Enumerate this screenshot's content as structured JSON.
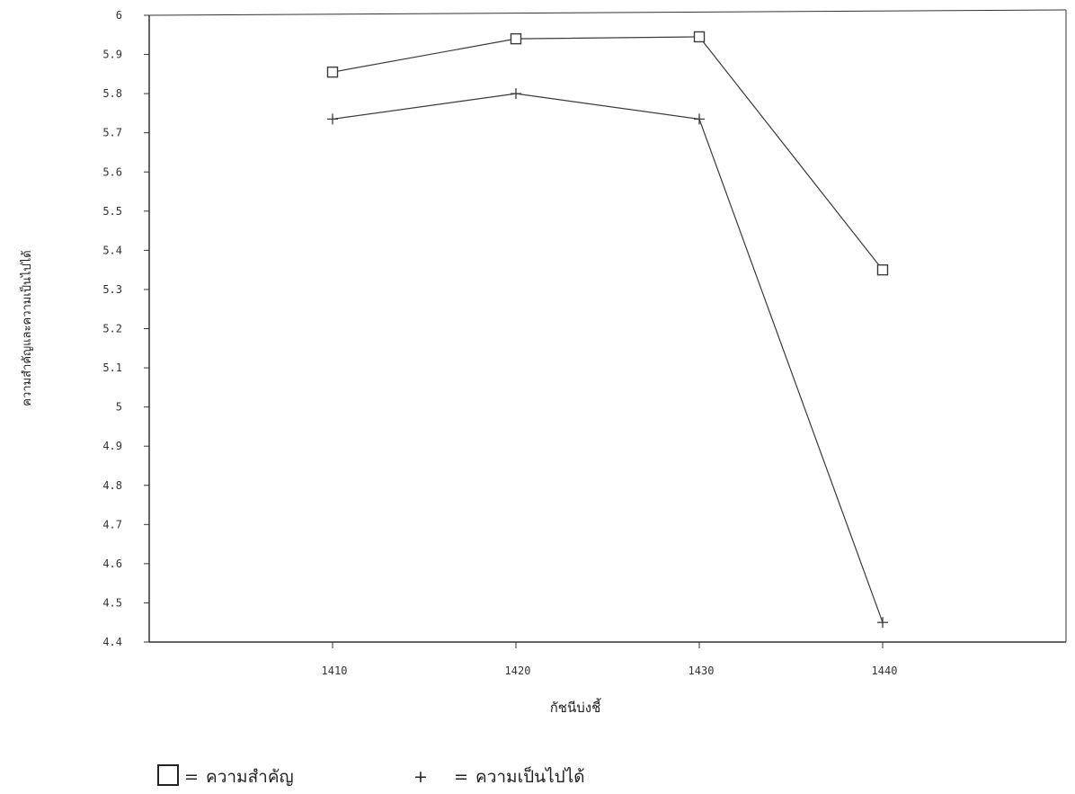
{
  "chart_data": {
    "type": "line",
    "title": "",
    "xlabel": "กัชนีบ่งชี้",
    "ylabel": "ความสำคัญและความเป็นไปได้",
    "x": [
      1410,
      1420,
      1430,
      1440
    ],
    "x_tick_labels": [
      "1410",
      "1420",
      "1430",
      "1440"
    ],
    "xlim": [
      1400,
      1450
    ],
    "ylim": [
      4.4,
      6
    ],
    "y_ticks": [
      4.4,
      4.5,
      4.6,
      4.7,
      4.8,
      4.9,
      5,
      5.1,
      5.2,
      5.3,
      5.4,
      5.5,
      5.6,
      5.7,
      5.8,
      5.9,
      6
    ],
    "y_tick_labels": [
      "4.4",
      "4.5",
      "4.6",
      "4.7",
      "4.8",
      "4.9",
      "5",
      "5.1",
      "5.2",
      "5.3",
      "5.4",
      "5.5",
      "5.6",
      "5.7",
      "5.8",
      "5.9",
      "6"
    ],
    "grid": false,
    "legend_position": "bottom",
    "series": [
      {
        "name": "ความสำคัญ",
        "marker": "square",
        "values": [
          5.855,
          5.94,
          5.945,
          5.35
        ]
      },
      {
        "name": "ความเป็นไปได้",
        "marker": "plus",
        "values": [
          5.735,
          5.8,
          5.735,
          4.45
        ]
      }
    ],
    "legend": [
      {
        "symbol": "□",
        "eq": "=",
        "label": "ความสำคัญ"
      },
      {
        "symbol": "+",
        "eq": "=",
        "label": "ความเป็นไปได้"
      }
    ],
    "colors": {
      "line": "#3a3a3a",
      "axis": "#333333",
      "text": "#222222"
    }
  }
}
